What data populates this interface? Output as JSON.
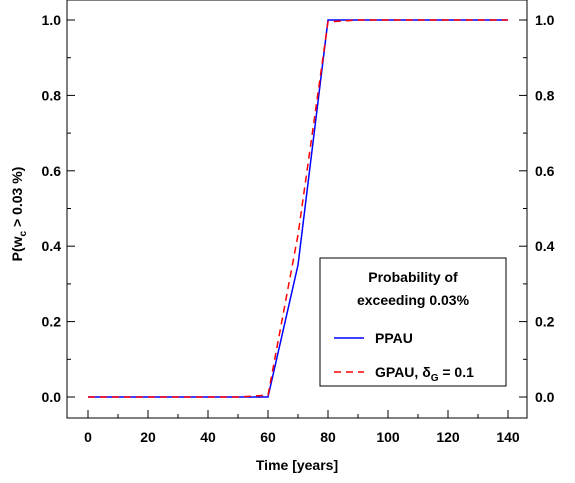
{
  "chart_data": {
    "type": "line",
    "title": "",
    "xlabel": "Time [years]",
    "ylabel": {
      "prefix": "P(w",
      "sub": "c",
      "suffix": " > 0.03 %)"
    },
    "xlim": [
      0,
      140
    ],
    "ylim": [
      0,
      1
    ],
    "x_ticks": [
      0,
      20,
      40,
      60,
      80,
      100,
      120,
      140
    ],
    "x_tick_labels": [
      "0",
      "20",
      "40",
      "60",
      "80",
      "100",
      "120",
      "140"
    ],
    "y_ticks": [
      0,
      0.2,
      0.4,
      0.6,
      0.8,
      1.0
    ],
    "y_tick_labels": [
      "0.0",
      "0.2",
      "0.4",
      "0.6",
      "0.8",
      "1.0"
    ],
    "grid": false,
    "legend": {
      "title_line1": "Probability of",
      "title_line2": "exceeding 0.03%",
      "placement": "bottom-right"
    },
    "series": [
      {
        "name": "PPAU",
        "color": "#0000ff",
        "dash": "solid",
        "x": [
          0,
          10,
          20,
          30,
          40,
          50,
          60,
          70,
          80,
          90,
          100,
          110,
          120,
          130,
          140
        ],
        "y": [
          0,
          0,
          0,
          0,
          0,
          0,
          0,
          0.35,
          1.0,
          1.0,
          1.0,
          1.0,
          1.0,
          1.0,
          1.0
        ]
      },
      {
        "name_prefix": "GPAU, δ",
        "name_sub": "G",
        "name_suffix": " = 0.1",
        "color": "#ff0000",
        "dash": "dashed",
        "x": [
          0,
          10,
          20,
          30,
          40,
          50,
          60,
          70,
          80,
          90,
          100,
          110,
          120,
          130,
          140
        ],
        "y": [
          0,
          0,
          0,
          0,
          0,
          0,
          0.005,
          0.43,
          0.995,
          1.0,
          1.0,
          1.0,
          1.0,
          1.0,
          1.0
        ]
      }
    ]
  }
}
